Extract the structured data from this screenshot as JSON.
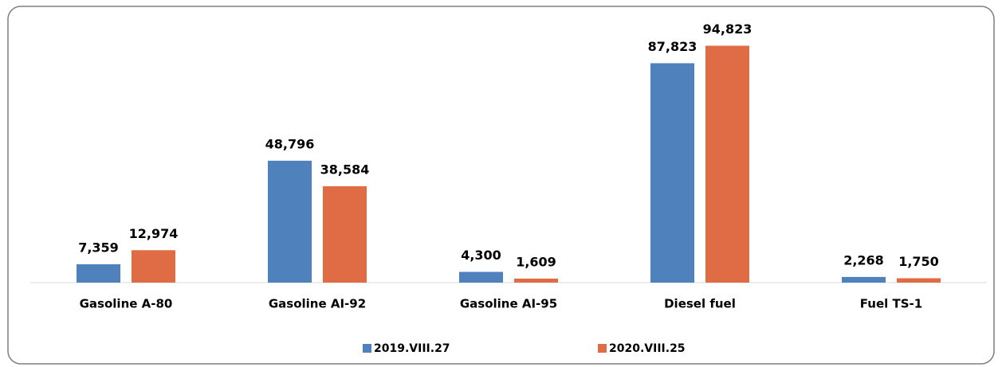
{
  "chart_data": {
    "type": "bar",
    "categories": [
      "Gasoline A-80",
      "Gasoline AI-92",
      "Gasoline AI-95",
      "Diesel fuel",
      "Fuel TS-1"
    ],
    "series": [
      {
        "name": "2019.VIII.27",
        "color": "#4f81bd",
        "values": [
          7359,
          48796,
          4300,
          87823,
          2268
        ],
        "value_labels": [
          "7,359",
          "48,796",
          "4,300",
          "87,823",
          "2,268"
        ]
      },
      {
        "name": "2020.VIII.25",
        "color": "#e06c45",
        "values": [
          12974,
          38584,
          1609,
          94823,
          1750
        ],
        "value_labels": [
          "12,974",
          "38,584",
          "1,609",
          "94,823",
          "1,750"
        ]
      }
    ]
  }
}
